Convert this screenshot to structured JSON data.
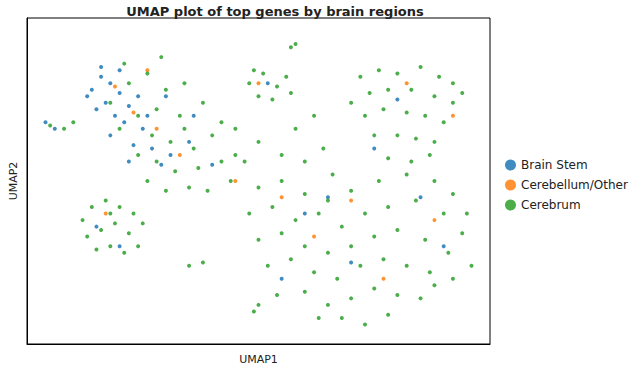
{
  "chart_data": {
    "type": "scatter",
    "title": "UMAP plot of top genes by brain regions",
    "x_label": "UMAP1",
    "y_label": "UMAP2",
    "xlim": [
      0,
      100
    ],
    "ylim": [
      0,
      100
    ],
    "tick_labels": false,
    "grid": false,
    "legend": "right",
    "marker": "circle",
    "series": [
      {
        "name": "Brain Stem",
        "color": "#1f77b4",
        "values": [
          [
            14,
            78
          ],
          [
            16,
            82
          ],
          [
            18,
            80
          ],
          [
            20,
            77
          ],
          [
            15,
            72
          ],
          [
            17,
            74
          ],
          [
            19,
            70
          ],
          [
            22,
            73
          ],
          [
            24,
            76
          ],
          [
            21,
            68
          ],
          [
            25,
            66
          ],
          [
            18,
            64
          ],
          [
            23,
            61
          ],
          [
            27,
            60
          ],
          [
            26,
            70
          ],
          [
            16,
            85
          ],
          [
            20,
            84
          ],
          [
            29,
            55
          ],
          [
            31,
            58
          ],
          [
            22,
            56
          ],
          [
            13,
            76
          ],
          [
            4,
            68
          ],
          [
            6,
            66
          ],
          [
            35,
            62
          ],
          [
            40,
            55
          ],
          [
            30,
            76
          ],
          [
            52,
            80
          ],
          [
            80,
            75
          ],
          [
            60,
            40
          ],
          [
            70,
            25
          ],
          [
            85,
            45
          ],
          [
            15,
            36
          ],
          [
            20,
            30
          ],
          [
            55,
            20
          ],
          [
            90,
            30
          ],
          [
            75,
            60
          ],
          [
            65,
            45
          ],
          [
            36,
            70
          ]
        ]
      },
      {
        "name": "Cerebellum/Other",
        "color": "#ff7f0e",
        "values": [
          [
            19,
            79
          ],
          [
            23,
            71
          ],
          [
            28,
            66
          ],
          [
            33,
            58
          ],
          [
            45,
            50
          ],
          [
            50,
            80
          ],
          [
            82,
            80
          ],
          [
            62,
            33
          ],
          [
            77,
            20
          ],
          [
            88,
            38
          ],
          [
            17,
            40
          ],
          [
            70,
            44
          ],
          [
            55,
            45
          ],
          [
            92,
            70
          ],
          [
            26,
            84
          ]
        ]
      },
      {
        "name": "Cerebrum",
        "color": "#2ca02c",
        "values": [
          [
            22,
            80
          ],
          [
            26,
            83
          ],
          [
            30,
            78
          ],
          [
            34,
            80
          ],
          [
            28,
            72
          ],
          [
            33,
            70
          ],
          [
            38,
            74
          ],
          [
            24,
            70
          ],
          [
            20,
            66
          ],
          [
            27,
            64
          ],
          [
            31,
            62
          ],
          [
            36,
            60
          ],
          [
            40,
            64
          ],
          [
            42,
            56
          ],
          [
            37,
            54
          ],
          [
            32,
            53
          ],
          [
            28,
            56
          ],
          [
            24,
            58
          ],
          [
            35,
            48
          ],
          [
            39,
            47
          ],
          [
            44,
            50
          ],
          [
            30,
            47
          ],
          [
            26,
            50
          ],
          [
            42,
            68
          ],
          [
            18,
            74
          ],
          [
            21,
            86
          ],
          [
            45,
            58
          ],
          [
            29,
            88
          ],
          [
            34,
            66
          ],
          [
            5,
            67
          ],
          [
            8,
            66
          ],
          [
            10,
            68
          ],
          [
            48,
            80
          ],
          [
            51,
            83
          ],
          [
            54,
            79
          ],
          [
            56,
            82
          ],
          [
            50,
            76
          ],
          [
            53,
            75
          ],
          [
            57,
            77
          ],
          [
            49,
            84
          ],
          [
            57,
            91
          ],
          [
            58,
            92
          ],
          [
            72,
            82
          ],
          [
            76,
            84
          ],
          [
            80,
            83
          ],
          [
            85,
            85
          ],
          [
            89,
            82
          ],
          [
            92,
            80
          ],
          [
            74,
            77
          ],
          [
            78,
            78
          ],
          [
            83,
            78
          ],
          [
            88,
            76
          ],
          [
            92,
            74
          ],
          [
            73,
            70
          ],
          [
            77,
            72
          ],
          [
            82,
            71
          ],
          [
            86,
            70
          ],
          [
            90,
            68
          ],
          [
            75,
            64
          ],
          [
            80,
            64
          ],
          [
            84,
            63
          ],
          [
            88,
            62
          ],
          [
            78,
            57
          ],
          [
            83,
            56
          ],
          [
            87,
            58
          ],
          [
            70,
            74
          ],
          [
            94,
            77
          ],
          [
            12,
            38
          ],
          [
            14,
            42
          ],
          [
            17,
            44
          ],
          [
            20,
            42
          ],
          [
            23,
            40
          ],
          [
            25,
            37
          ],
          [
            13,
            33
          ],
          [
            16,
            35
          ],
          [
            19,
            37
          ],
          [
            22,
            34
          ],
          [
            24,
            30
          ],
          [
            15,
            29
          ],
          [
            18,
            30
          ],
          [
            21,
            28
          ],
          [
            18,
            40
          ],
          [
            50,
            48
          ],
          [
            55,
            50
          ],
          [
            60,
            46
          ],
          [
            65,
            44
          ],
          [
            70,
            47
          ],
          [
            76,
            50
          ],
          [
            82,
            52
          ],
          [
            88,
            50
          ],
          [
            92,
            46
          ],
          [
            95,
            40
          ],
          [
            48,
            40
          ],
          [
            53,
            42
          ],
          [
            58,
            38
          ],
          [
            63,
            40
          ],
          [
            68,
            36
          ],
          [
            73,
            40
          ],
          [
            78,
            42
          ],
          [
            84,
            44
          ],
          [
            90,
            40
          ],
          [
            94,
            34
          ],
          [
            50,
            32
          ],
          [
            55,
            34
          ],
          [
            60,
            30
          ],
          [
            65,
            28
          ],
          [
            70,
            30
          ],
          [
            75,
            33
          ],
          [
            80,
            35
          ],
          [
            86,
            32
          ],
          [
            91,
            28
          ],
          [
            96,
            24
          ],
          [
            52,
            24
          ],
          [
            57,
            26
          ],
          [
            62,
            22
          ],
          [
            67,
            20
          ],
          [
            72,
            24
          ],
          [
            77,
            26
          ],
          [
            82,
            24
          ],
          [
            87,
            22
          ],
          [
            92,
            20
          ],
          [
            60,
            16
          ],
          [
            65,
            12
          ],
          [
            70,
            14
          ],
          [
            75,
            17
          ],
          [
            80,
            15
          ],
          [
            85,
            14
          ],
          [
            88,
            18
          ],
          [
            68,
            8
          ],
          [
            73,
            6
          ],
          [
            78,
            9
          ],
          [
            63,
            8
          ],
          [
            45,
            66
          ],
          [
            50,
            62
          ],
          [
            55,
            58
          ],
          [
            60,
            56
          ],
          [
            64,
            60
          ],
          [
            58,
            66
          ],
          [
            62,
            70
          ],
          [
            47,
            56
          ],
          [
            66,
            52
          ],
          [
            35,
            24
          ],
          [
            38,
            25
          ],
          [
            49,
            10
          ],
          [
            50,
            12
          ],
          [
            54,
            15
          ]
        ]
      }
    ]
  }
}
